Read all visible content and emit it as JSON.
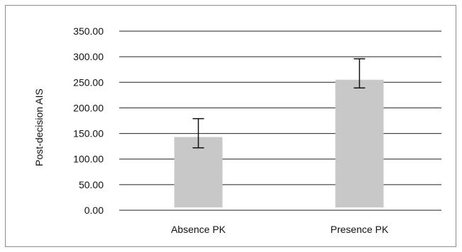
{
  "chart_data": {
    "type": "bar",
    "title": "",
    "xlabel": "",
    "ylabel": "Post-decision AIS",
    "categories": [
      "Absence PK",
      "Presence PK"
    ],
    "values": [
      143,
      255
    ],
    "error_bars": [
      {
        "low": 122,
        "high": 179
      },
      {
        "low": 239,
        "high": 296
      }
    ],
    "ylim": [
      0,
      350
    ],
    "yticks": [
      0,
      50,
      100,
      150,
      200,
      250,
      300,
      350
    ],
    "ytick_labels": [
      "0.00",
      "50.00",
      "100.00",
      "150.00",
      "200.00",
      "250.00",
      "300.00",
      "350.00"
    ],
    "grid": true,
    "legend": "none",
    "colors": {
      "bar": "#c8c8c8",
      "grid": "#222222",
      "error": "#111111",
      "border": "#8c8c8c"
    }
  }
}
